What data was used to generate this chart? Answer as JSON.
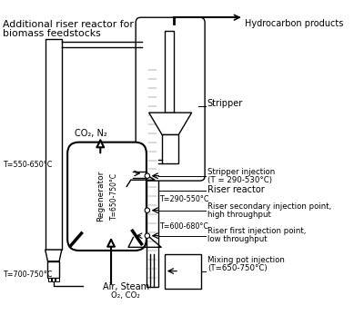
{
  "bg_color": "#ffffff",
  "line_color": "#000000",
  "labels": {
    "title_line1": "Additional riser reactor for",
    "title_line2": "biomass feedstocks",
    "hydrocarbon": "Hydrocarbon products",
    "stripper": "Stripper",
    "stripper_inj_line1": "Stripper injection",
    "stripper_inj_line2": "(T = 290-530°C)",
    "riser_reactor": "Riser reactor",
    "riser_temp": "T=290-550°C",
    "riser_secondary_line1": "Riser secondary injection point,",
    "riser_secondary_line2": "high throughput",
    "riser_first_temp": "T=600-680°C",
    "riser_first_line1": "Riser first injection point,",
    "riser_first_line2": "low throughput",
    "mixing_pot_line1": "Mixing pot injection",
    "mixing_pot_line2": "(T=650-750°C)",
    "co2_n2": "CO₂, N₂",
    "air_steam_line1": "Air, Steam",
    "air_steam_line2": "O₂, CO₂",
    "regenerator": "Regenerator",
    "regen_temp": "T=650-750°C",
    "t_left_top": "T=550-650°C",
    "t_left_bot": "T=700-750°C"
  }
}
